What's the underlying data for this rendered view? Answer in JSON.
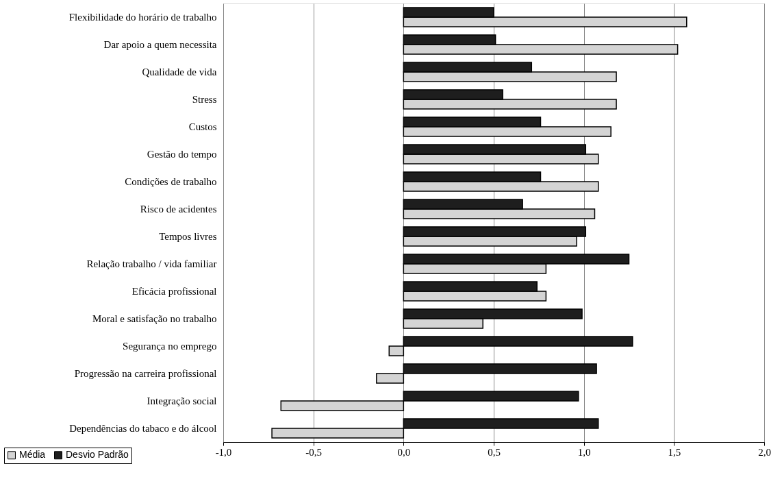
{
  "chart_data": {
    "type": "bar",
    "orientation": "horizontal",
    "categories": [
      "Flexibilidade do horário de trabalho",
      "Dar apoio a quem necessita",
      "Qualidade de vida",
      "Stress",
      "Custos",
      "Gestão do tempo",
      "Condições de trabalho",
      "Risco de acidentes",
      "Tempos livres",
      "Relação trabalho / vida familiar",
      "Eficácia profissional",
      "Moral e satisfação no trabalho",
      "Segurança no emprego",
      "Progressão na carreira profissional",
      "Integração social",
      "Dependências do tabaco e do álcool"
    ],
    "series": [
      {
        "name": "Média",
        "color": "#d4d4d4",
        "values": [
          1.57,
          1.52,
          1.18,
          1.18,
          1.15,
          1.08,
          1.08,
          1.06,
          0.96,
          0.79,
          0.79,
          0.44,
          -0.08,
          -0.15,
          -0.68,
          -0.73
        ]
      },
      {
        "name": "Desvio Padrão",
        "color": "#1e1e1e",
        "values": [
          0.5,
          0.51,
          0.71,
          0.55,
          0.76,
          1.01,
          0.76,
          0.66,
          1.01,
          1.25,
          0.74,
          0.99,
          1.27,
          1.07,
          0.97,
          1.08
        ]
      }
    ],
    "xlim": [
      -1.0,
      2.0
    ],
    "xticks": [
      {
        "value": -1.0,
        "label": "-1,0"
      },
      {
        "value": -0.5,
        "label": "-0,5"
      },
      {
        "value": 0.0,
        "label": "0,0"
      },
      {
        "value": 0.5,
        "label": "0,5"
      },
      {
        "value": 1.0,
        "label": "1,0"
      },
      {
        "value": 1.5,
        "label": "1,5"
      },
      {
        "value": 2.0,
        "label": "2,0"
      }
    ],
    "grid": "x",
    "legend": "bottom left"
  }
}
